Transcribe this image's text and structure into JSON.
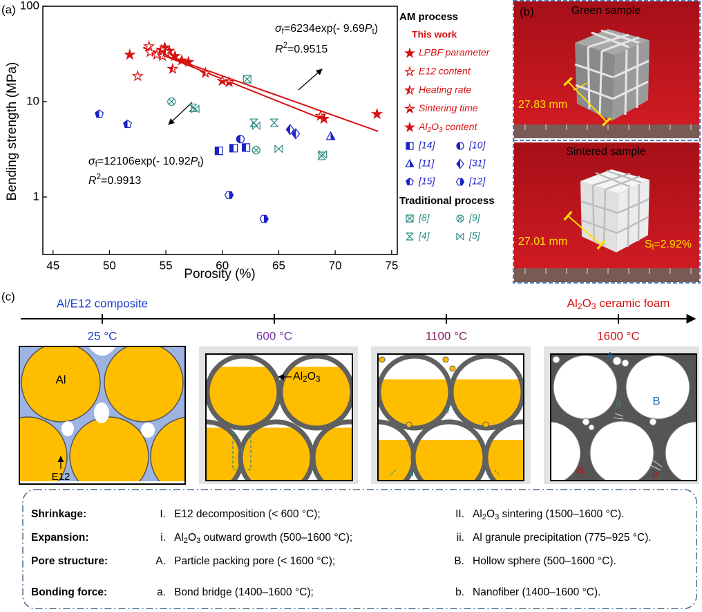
{
  "panel_labels": [
    "(a)",
    "(b)",
    "(c)"
  ],
  "chart_data": {
    "type": "scatter",
    "x_label": "Porosity (%)",
    "y_label": "Bending strength (MPa)",
    "xlim": [
      44.1,
      75.5
    ],
    "ylim": [
      0.25,
      100
    ],
    "log_y": true,
    "xticks": [
      45,
      50,
      55,
      60,
      65,
      70,
      75
    ],
    "yticks": [
      1,
      10,
      100
    ],
    "legend": "right",
    "legend_headers": {
      "am": "AM process",
      "this_work": "This work",
      "traditional": "Traditional process"
    },
    "series": [
      {
        "name": "LPBF parameter",
        "color": "#d81010",
        "marker": "star",
        "x": [
          51.8,
          54.9,
          55.3,
          55.8,
          56.4,
          57.0
        ],
        "values": [
          31,
          37,
          34,
          30,
          27,
          26
        ]
      },
      {
        "name": "E12 content",
        "color": "#d81010",
        "marker": "star-open",
        "x": [
          52.5,
          53.5,
          53.6,
          54.2,
          54.7
        ],
        "values": [
          18.5,
          38,
          33,
          31,
          30
        ]
      },
      {
        "name": "Heating rate",
        "color": "#d81010",
        "marker": "star-half-left",
        "x": [
          54.6,
          55.0,
          55.6,
          58.5
        ],
        "values": [
          35,
          33,
          22,
          20
        ]
      },
      {
        "name": "Sintering time",
        "color": "#d81010",
        "marker": "star-half-bottom",
        "x": [
          60.0,
          60.6,
          68.7
        ],
        "values": [
          16.5,
          16,
          7.1
        ]
      },
      {
        "name": [
          {
            "text": "Al"
          },
          {
            "sub": "2"
          },
          {
            "text": "O"
          },
          {
            "sub": "3"
          },
          {
            "text": " content"
          }
        ],
        "color": "#d81010",
        "marker": "star",
        "x": [
          69.0,
          73.7
        ],
        "values": [
          6.6,
          7.4
        ]
      },
      {
        "name": "[14]",
        "color": "#1a22c8",
        "marker": "square-half-left",
        "x": [
          59.7,
          61.0,
          62.1
        ],
        "values": [
          3.05,
          3.25,
          3.3
        ]
      },
      {
        "name": "[10]",
        "color": "#1a22c8",
        "marker": "circle-half-left",
        "x": [
          61.6
        ],
        "values": [
          4.05
        ]
      },
      {
        "name": "[11]",
        "color": "#1a22c8",
        "marker": "triangle-half-right",
        "x": [
          69.6
        ],
        "values": [
          4.3
        ]
      },
      {
        "name": "[31]",
        "color": "#1a22c8",
        "marker": "diamond-half-left",
        "x": [
          66.0,
          66.5
        ],
        "values": [
          5.1,
          4.6
        ]
      },
      {
        "name": "[15]",
        "color": "#1a22c8",
        "marker": "pentagon-half-left",
        "x": [
          49.1,
          51.6
        ],
        "values": [
          7.4,
          5.8
        ]
      },
      {
        "name": "[12]",
        "color": "#1a22c8",
        "marker": "hexagon-half-right",
        "x": [
          60.6,
          63.7
        ],
        "values": [
          1.05,
          0.59
        ]
      },
      {
        "name": "[8]",
        "color": "#2e8b84",
        "marker": "square-cross",
        "x": [
          62.2
        ],
        "values": [
          17.2
        ]
      },
      {
        "name": "[9]",
        "color": "#2e8b84",
        "marker": "circle-cross",
        "x": [
          55.5,
          63.0
        ],
        "values": [
          10,
          3.1
        ]
      },
      {
        "name": "[4]",
        "color": "#2e8b84",
        "marker": "bowtie",
        "x": [
          57.4,
          62.8,
          64.6,
          68.8
        ],
        "values": [
          8.6,
          6.0,
          6.0,
          2.7
        ]
      },
      {
        "name": "[5]",
        "color": "#2e8b84",
        "marker": "xcross",
        "x": [
          57.6,
          63.0,
          65.0,
          68.9
        ],
        "values": [
          8.4,
          5.6,
          3.2,
          2.8
        ]
      }
    ],
    "fits": [
      {
        "a": 6234,
        "b": 9.69,
        "x": [
          53,
          73.8
        ],
        "color": "#d81010",
        "label": [
          {
            "italic": "σ"
          },
          {
            "sub": "f"
          },
          {
            "text": "=6234exp(- 9.69"
          },
          {
            "italic": "P"
          },
          {
            "sub": "t"
          },
          {
            "text": ")"
          }
        ],
        "r2": [
          {
            "italic": "R"
          },
          {
            "sup": "2"
          },
          {
            "text": "=0.9515"
          }
        ]
      },
      {
        "a": 12106,
        "b": 10.92,
        "x": [
          53,
          69
        ],
        "color": "#d81010",
        "label": [
          {
            "italic": "σ"
          },
          {
            "sub": "f"
          },
          {
            "text": "=12106exp(- 10.92"
          },
          {
            "italic": "P"
          },
          {
            "sub": "t"
          },
          {
            "text": ")"
          }
        ],
        "r2": [
          {
            "italic": "R"
          },
          {
            "sup": "2"
          },
          {
            "text": "=0.9913"
          }
        ]
      }
    ]
  },
  "photos": [
    {
      "title": "Green sample",
      "dimension": "27.83 mm"
    },
    {
      "title": "Sintered sample",
      "dimension": "27.01 mm",
      "shrinkage": [
        {
          "text": "S"
        },
        {
          "sub": "l"
        },
        {
          "text": "=2.92%"
        }
      ]
    }
  ],
  "timeline": {
    "start": "Al/E12 composite",
    "end": [
      {
        "text": "Al"
      },
      {
        "sub": "2"
      },
      {
        "text": "O"
      },
      {
        "sub": "3"
      },
      {
        "text": " ceramic foam"
      }
    ],
    "temperatures": [
      "25 °C",
      "600 °C",
      "1100 °C",
      "1600 °C"
    ],
    "colors": [
      "#1a3fd0",
      "#7030a0",
      "#8b1a5a",
      "#d01010"
    ]
  },
  "diagram_labels": {
    "al": "Al",
    "e12": "E12",
    "al2o3": [
      {
        "text": "Al"
      },
      {
        "sub": "2"
      },
      {
        "text": "O"
      },
      {
        "sub": "3"
      }
    ],
    "shrink_1": "I",
    "expand_1": "i",
    "expand_2": "ii",
    "pore_a": "A",
    "pore_b": "B",
    "shrink_2": "II",
    "bond_a": "a",
    "bond_b": "b"
  },
  "summary": {
    "rows": [
      {
        "header": "Shrinkage:",
        "items": [
          {
            "marker": "I.",
            "text": "E12 decomposition (< 600 °C);"
          },
          {
            "marker": "II.",
            "text": [
              {
                "text": "Al"
              },
              {
                "sub": "2"
              },
              {
                "text": "O"
              },
              {
                "sub": "3"
              },
              {
                "text": " sintering (1500–1600 °C)."
              }
            ]
          }
        ]
      },
      {
        "header": "Expansion:",
        "items": [
          {
            "marker": "i.",
            "text": [
              {
                "text": "Al"
              },
              {
                "sub": "2"
              },
              {
                "text": "O"
              },
              {
                "sub": "3"
              },
              {
                "text": " outward growth (500–1600 °C);"
              }
            ]
          },
          {
            "marker": "ii.",
            "text": "Al granule precipitation (775–925 °C)."
          }
        ]
      },
      {
        "header": "Pore structure:",
        "items": [
          {
            "marker": "A.",
            "text": "Particle packing pore (< 1600 °C);"
          },
          {
            "marker": "B.",
            "text": "Hollow sphere (500–1600 °C)."
          }
        ]
      },
      {
        "header": "Bonding force:",
        "items": [
          {
            "marker": "a.",
            "text": "Bond bridge (1400–1600 °C);"
          },
          {
            "marker": "b.",
            "text": "Nanofiber (1400–1600 °C)."
          }
        ]
      }
    ]
  }
}
